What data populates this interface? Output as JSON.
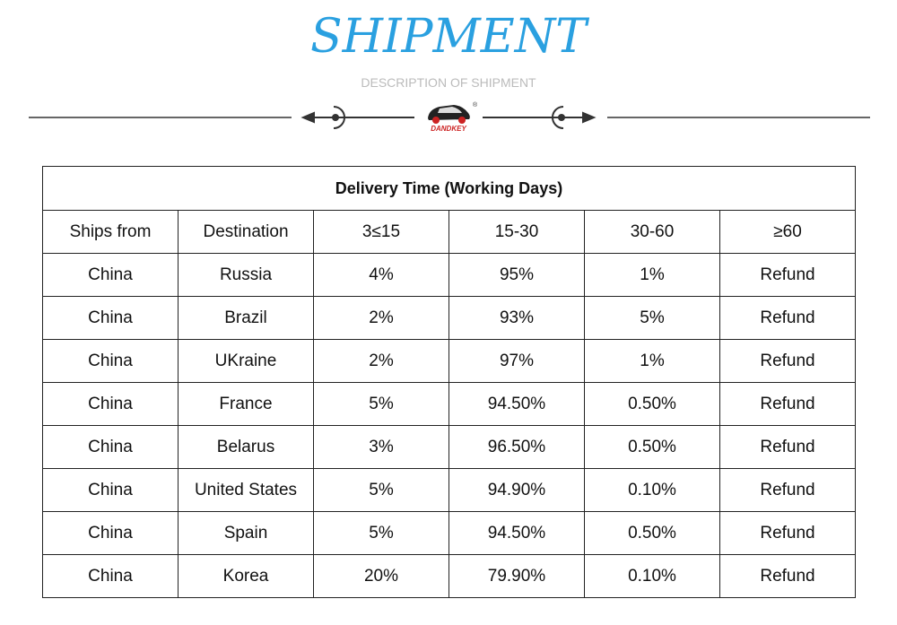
{
  "header": {
    "title": "SHIPMENT",
    "subtitle": "DESCRIPTION OF SHIPMENT",
    "logo": "DANDKEY",
    "logo_mark": "®"
  },
  "table": {
    "title": "Delivery Time (Working Days)",
    "columns": [
      "Ships from",
      "Destination",
      "3≤15",
      "15-30",
      "30-60",
      "≥60"
    ],
    "rows": [
      [
        "China",
        "Russia",
        "4%",
        "95%",
        "1%",
        "Refund"
      ],
      [
        "China",
        "Brazil",
        "2%",
        "93%",
        "5%",
        "Refund"
      ],
      [
        "China",
        "UKraine",
        "2%",
        "97%",
        "1%",
        "Refund"
      ],
      [
        "China",
        "France",
        "5%",
        "94.50%",
        "0.50%",
        "Refund"
      ],
      [
        "China",
        "Belarus",
        "3%",
        "96.50%",
        "0.50%",
        "Refund"
      ],
      [
        "China",
        "United States",
        "5%",
        "94.90%",
        "0.10%",
        "Refund"
      ],
      [
        "China",
        "Spain",
        "5%",
        "94.50%",
        "0.50%",
        "Refund"
      ],
      [
        "China",
        "Korea",
        "20%",
        "79.90%",
        "0.10%",
        "Refund"
      ]
    ]
  }
}
